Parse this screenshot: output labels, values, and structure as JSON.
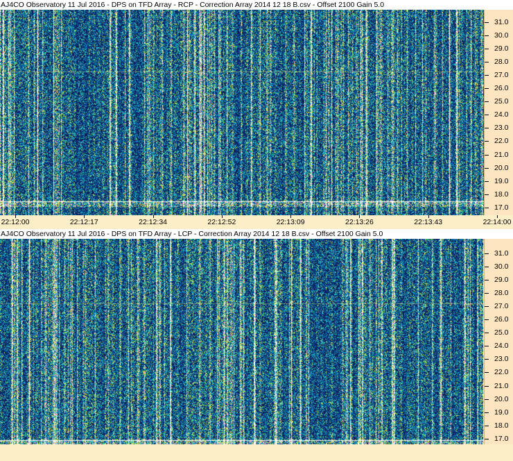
{
  "panels": [
    {
      "id": "rcp",
      "title": "AJ4CO Observatory 11 Jul 2016  -  DPS on TFD Array  -  RCP  -  Correction Array 2014 12 18 B.csv  -  Offset 2100  Gain 5.0",
      "freq_labels": [
        "31.0",
        "30.0",
        "29.0",
        "28.0",
        "27.0",
        "26.0",
        "25.0",
        "24.0",
        "23.0",
        "22.0",
        "21.0",
        "20.0",
        "19.0",
        "18.0",
        "17.0"
      ],
      "time_labels": [
        "22:12:00",
        "22:12:17",
        "22:12:34",
        "22:12:52",
        "22:13:09",
        "22:13:26",
        "22:13:43",
        "22:14:00"
      ]
    },
    {
      "id": "lcp",
      "title": "AJ4CO Observatory 11 Jul 2016  -  DPS on TFD Array  -  LCP  -  Correction Array 2014 12 18 B.csv  -  Offset 2100  Gain 5.0",
      "freq_labels": [
        "31.0",
        "30.0",
        "29.0",
        "28.0",
        "27.0",
        "26.0",
        "25.0",
        "24.0",
        "23.0",
        "22.0",
        "21.0",
        "20.0",
        "19.0",
        "18.0",
        "17.0"
      ],
      "time_labels": []
    }
  ],
  "colors": {
    "background": "#fcefc8",
    "axis_panel": "#fce5c0",
    "spectrogram_base": "#143a6a"
  }
}
